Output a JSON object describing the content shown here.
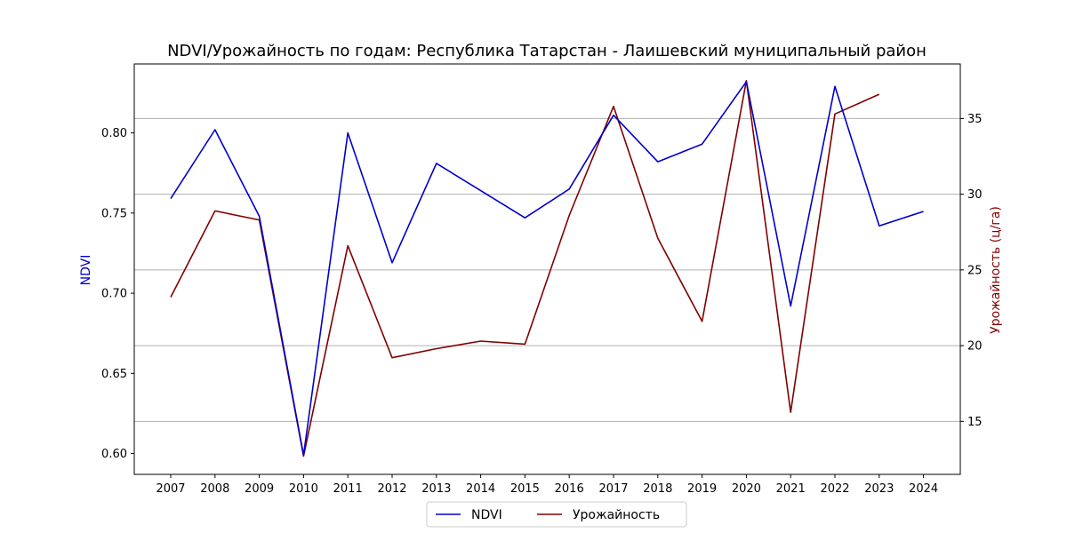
{
  "chart_data": {
    "type": "line",
    "title": "NDVI/Урожайность по годам: Республика Татарстан - Лаишевский муниципальный район",
    "x": [
      "2007",
      "2008",
      "2009",
      "2010",
      "2011",
      "2012",
      "2013",
      "2014",
      "2015",
      "2016",
      "2017",
      "2018",
      "2019",
      "2020",
      "2021",
      "2022",
      "2023",
      "2024"
    ],
    "left_axis": {
      "label": "NDVI",
      "color": "#0000cc",
      "ylim": [
        0.587,
        0.843
      ],
      "ticks": [
        0.6,
        0.65,
        0.7,
        0.75,
        0.8
      ],
      "tick_labels": [
        "0.60",
        "0.65",
        "0.70",
        "0.75",
        "0.80"
      ]
    },
    "right_axis": {
      "label": "Урожайность (ц/га)",
      "color": "#800000",
      "ylim": [
        11.5,
        38.6
      ],
      "ticks": [
        15,
        20,
        25,
        30,
        35
      ],
      "tick_labels": [
        "15",
        "20",
        "25",
        "30",
        "35"
      ]
    },
    "grid": "horizontal-right-axis",
    "series": [
      {
        "name": "NDVI",
        "axis": "left",
        "color": "#0000cc",
        "values": [
          0.759,
          0.802,
          0.748,
          0.599,
          0.8,
          0.719,
          0.781,
          0.764,
          0.747,
          0.765,
          0.811,
          0.782,
          0.793,
          0.832,
          0.692,
          0.829,
          0.742,
          0.751
        ]
      },
      {
        "name": "Урожайность",
        "axis": "right",
        "color": "#800000",
        "values": [
          23.2,
          28.9,
          28.3,
          12.7,
          26.6,
          19.2,
          19.8,
          20.3,
          20.1,
          28.6,
          35.8,
          27.1,
          21.6,
          37.5,
          15.6,
          35.3,
          36.6,
          null
        ]
      }
    ],
    "legend": {
      "placement": "bottom-center",
      "entries": [
        "NDVI",
        "Урожайность"
      ]
    }
  }
}
